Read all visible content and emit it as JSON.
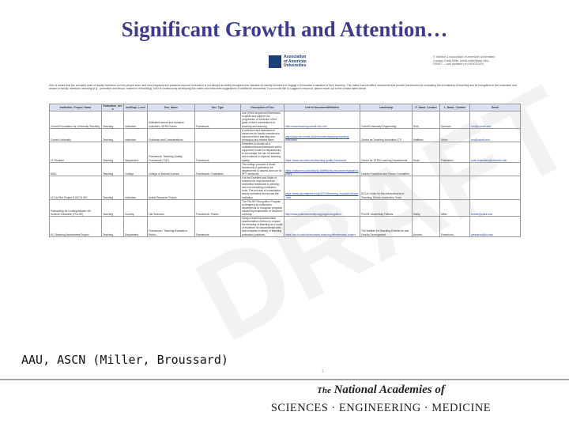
{
  "slide": {
    "title": "Significant Growth and Attention…",
    "caption": "AAU, ASCN (Miller, Broussard)",
    "footer": {
      "line1_prefix": "The",
      "line1_main": "National Academies of",
      "line2": "SCIENCES · ENGINEERING · MEDICINE"
    }
  },
  "document": {
    "watermark": "DRAFT",
    "logo_text": "Association of American Universities",
    "contact_lines": [
      "© Intellect & Association of American Universities",
      "Contact: Emily Miller (emily.miller@aau.edu)",
      "DRAFT – Last Updated (on 05/30/2019)"
    ],
    "intro": "AAU is aware that the scholarly work of faculty members on how people learn and how programs and practices improve instruction is not always as widely recognized as valuable for faculty members to engage in innovative evaluation of their teaching. This matrix has identified documents that provide frameworks for evaluating the scholarship of teaching and its recognition in the evaluation and reward of faculty members' teaching (e.g., promotion and tenure, evidence of teaching). AAU is continuously developing this matrix and welcomes suggestions of additional documents. If you would like to suggest a resource, please reach out to the contact listed above.",
    "page_number": "1",
    "table": {
      "headers": [
        "Institution_Project_Name",
        "Evaluation_Area",
        "Inst/Dept_Level",
        "Doc_Name",
        "Doc_Type",
        "Description of Doc",
        "Link to Document/Websites",
        "Leadership",
        "P_Name_Contact",
        "L_Name_Contact",
        "Email"
      ],
      "rows": [
        [
          "Cornell Foundation for University Teaching",
          "Teaching",
          "Institution",
          "Multidimensional and inclusive, Indicators, MTRA Rubric",
          "Framework",
          "Use of this sequenced framework to guide and support the progression of evidence of the goals of their contributions to teaching and learning.",
          "http://www.teaching.cornell.edu.com",
          "Cornell University Engineering",
          "Ruth",
          "Dunham",
          "ruth@cornell.edu"
        ],
        [
          "Cornell University",
          "Teaching",
          "Institution",
          "Guidance and Considerations",
          "",
          "A collection and assessment resources for faculty members to document their teaching and promotion and reward them.",
          "http://www.cte.cornell.edu/resources/teaching-teaching-evaluation",
          "Center for Teaching Innovation CTI",
          "Matthew",
          "Ulrich",
          "mu@cornell.edu"
        ],
        [
          "CU Boulder",
          "Teaching",
          "Department",
          "Framework: Teaching Quality Framework (TQF)",
          "Framework",
          "Describes to faculty as a multidimensional framework with a supportive model for departments to encourage the use of research and evidence to improve teaching quality.",
          "https://www.colorado.edu/teaching-quality-framework",
          "Center for STEM Learning Departments",
          "Noah",
          "Finkelstein",
          "noah.finkelstein@colorado.edu"
        ],
        [
          "MSU",
          "Teaching",
          "College",
          "College of Natural Science",
          "Framework / Guidelines",
          "The college provides a broad framework of guidelines for departments to assess and use for RPT decisions.",
          "https://natsci.msu.edu/faculty-staff/faculty-resources/evaluation-policy",
          "Faculty Promotion and Tenure Committee",
          "",
          "",
          ""
        ],
        [
          "UCLA Pilot Project & ASCN WG",
          "Teaching",
          "Institution",
          "Action Research Project",
          "",
          "It is the Excellent and Make of teachers for improvement an evaluation framework to develop and use consulting evaluation tools. The process of consultation, faculty members and across the institution.",
          "https://www.ascnhighered.org/ASCN/teaching_evaluation/index.html",
          "UCLA Center for the Advancement of Teaching; Senior Leadership Team",
          "",
          "",
          ""
        ],
        [
          "Partnership for Undergraduate Life Science Education (PULSE)",
          "Teaching",
          "Country",
          "Life Sciences",
          "Framework / Rubric",
          "The PULSE Recognition Program is designed for institutions, departments to recognize progress toward implementation of reformed curricula.",
          "http://www.pulsecommunity.org/page/recognition",
          "PULSE Leadership Fellows",
          "Kathy",
          "Miller",
          "kmiller@pulse.edu"
        ],
        [
          "KU Teaching Assessment Project",
          "Teaching",
          "Department",
          "Framework / Teaching Evaluation Rubric",
          "Framework",
          "Using a teaching assessment documentation method to unpack the meaning of teaching as a mode of evidence for departmental units that comprise a variety of teaching evaluation practices.",
          "https://cte.ku.edu/benchmarks-teaching-effectiveness-project",
          "The Institute for Teaching Excellence and Faculty Development",
          "Andrea",
          "Greenhoot",
          "greenhoot@ku.edu"
        ]
      ]
    }
  }
}
